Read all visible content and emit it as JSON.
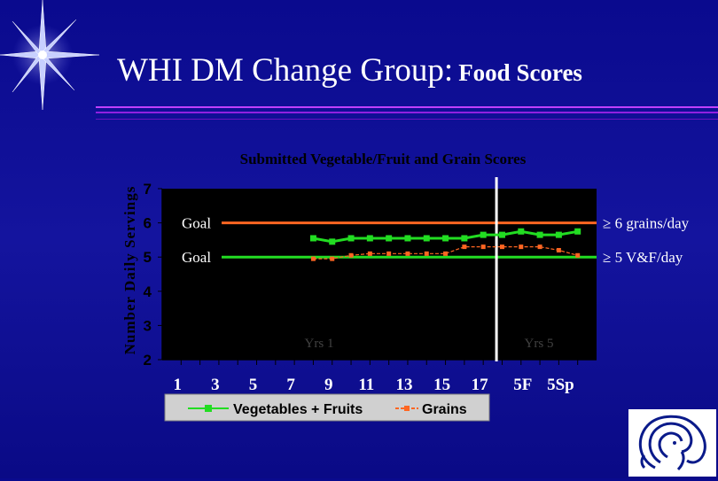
{
  "slide": {
    "title_main": "WHI DM Change Group:",
    "title_sub": "Food Scores"
  },
  "chart_data": {
    "type": "line",
    "title": "Submitted Vegetable/Fruit and Grain Scores",
    "ylabel": "Number Daily Servings",
    "xlabel": "",
    "ylim": [
      2,
      7
    ],
    "yticks": [
      "2",
      "3",
      "4",
      "5",
      "6",
      "7"
    ],
    "x_tick_labels": [
      "1",
      "3",
      "5",
      "7",
      "9",
      "11",
      "13",
      "15",
      "17",
      "5F",
      "5Sp"
    ],
    "x_positions": [
      8,
      9,
      10,
      11,
      12,
      13,
      14,
      15,
      16,
      17,
      18,
      19,
      20,
      21,
      22
    ],
    "series": [
      {
        "name": "Vegetables + Fruits",
        "color": "#22dd22",
        "marker": "square",
        "values": [
          5.55,
          5.45,
          5.55,
          5.55,
          5.55,
          5.55,
          5.55,
          5.55,
          5.55,
          5.65,
          5.65,
          5.75,
          5.65,
          5.65,
          5.75
        ]
      },
      {
        "name": "Grains",
        "color": "#ff6622",
        "marker": "square",
        "values": [
          4.95,
          4.95,
          5.05,
          5.1,
          5.1,
          5.1,
          5.1,
          5.1,
          5.3,
          5.3,
          5.3,
          5.3,
          5.3,
          5.2,
          5.05
        ]
      }
    ],
    "reference_lines": [
      {
        "value": 6,
        "color": "#ff6622",
        "left_label": "Goal",
        "right_label": "≥ 6 grains/day"
      },
      {
        "value": 5,
        "color": "#22dd22",
        "left_label": "Goal",
        "right_label": "≥ 5 V&F/day"
      }
    ],
    "divider_x": 17.7,
    "annotations": [
      "Yrs 1",
      "Yrs 5"
    ],
    "grid": false,
    "legend_position": "bottom"
  }
}
